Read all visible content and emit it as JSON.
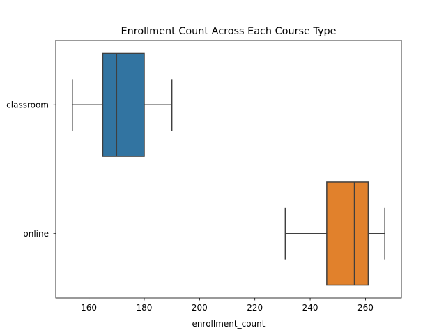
{
  "chart_data": {
    "type": "box",
    "title": "Enrollment Count Across Each Course Type",
    "xlabel": "enrollment_count",
    "ylabel": "",
    "orientation": "horizontal",
    "xlim": [
      148,
      273
    ],
    "xticks": [
      160,
      180,
      200,
      220,
      240,
      260
    ],
    "grid": false,
    "categories": [
      "classroom",
      "online"
    ],
    "boxes": [
      {
        "category": "classroom",
        "whisker_low": 154,
        "q1": 165,
        "median": 170,
        "q3": 180,
        "whisker_high": 190,
        "color": "#3274a1"
      },
      {
        "category": "online",
        "whisker_low": 231,
        "q1": 246,
        "median": 256,
        "q3": 261,
        "whisker_high": 267,
        "color": "#e1812c"
      }
    ],
    "line_color": "#3f3f3f"
  }
}
